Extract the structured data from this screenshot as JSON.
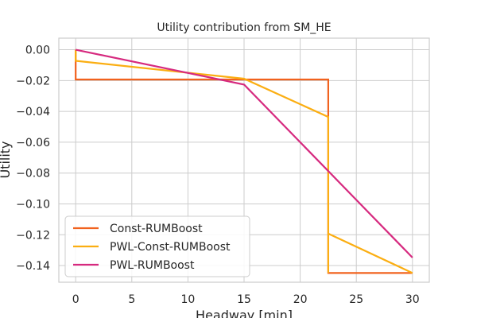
{
  "chart_data": {
    "type": "line",
    "title": "Utility contribution from SM_HE",
    "xlabel": "Headway [min]",
    "ylabel": "Utility",
    "xlim": [
      -1.5,
      31.5
    ],
    "ylim": [
      -0.1508,
      0.0075
    ],
    "xticks": [
      0,
      5,
      10,
      15,
      20,
      25,
      30
    ],
    "xtick_labels": [
      "0",
      "5",
      "10",
      "15",
      "20",
      "25",
      "30"
    ],
    "yticks": [
      0.0,
      -0.02,
      -0.04,
      -0.06,
      -0.08,
      -0.1,
      -0.12,
      -0.14
    ],
    "ytick_labels": [
      "0.00",
      "−0.02",
      "−0.04",
      "−0.06",
      "−0.08",
      "−0.10",
      "−0.12",
      "−0.14"
    ],
    "grid": true,
    "legend_position": "lower-left",
    "series": [
      {
        "name": "Const-RUMBoost",
        "color": "#f1621e",
        "x": [
          0,
          0,
          22.5,
          22.5,
          30
        ],
        "y": [
          0,
          -0.0193,
          -0.0193,
          -0.1448,
          -0.1448
        ]
      },
      {
        "name": "PWL-Const-RUMBoost",
        "color": "#fbae12",
        "x": [
          0,
          0,
          15,
          22.5,
          22.5,
          22.5,
          30
        ],
        "y": [
          0,
          -0.0072,
          -0.0188,
          -0.0436,
          -0.1448,
          -0.1193,
          -0.1448
        ]
      },
      {
        "name": "PWL-RUMBoost",
        "color": "#d62a7f",
        "x": [
          0,
          15,
          30
        ],
        "y": [
          0,
          -0.0226,
          -0.1348
        ]
      }
    ]
  }
}
